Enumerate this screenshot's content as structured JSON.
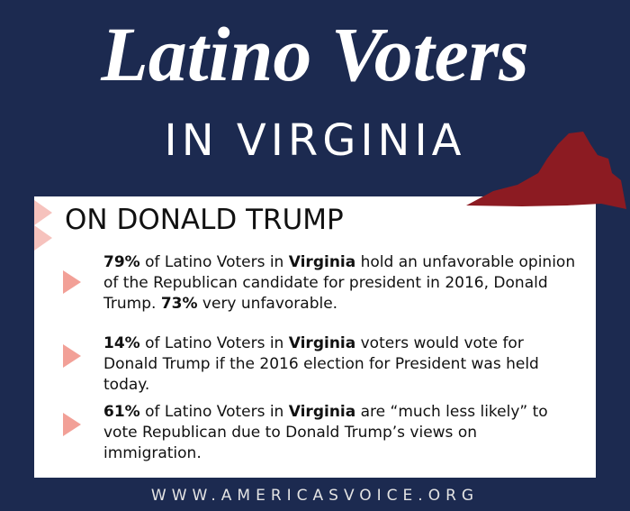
{
  "header": {
    "title": "Latino Voters",
    "subtitle": "IN VIRGINIA"
  },
  "section": {
    "heading": "ON DONALD TRUMP",
    "bullets": [
      {
        "runs": [
          {
            "text": "79%",
            "bold": true
          },
          {
            "text": " of Latino Voters in ",
            "bold": false
          },
          {
            "text": "Virginia",
            "bold": true
          },
          {
            "text": " hold an unfavorable opinion of the Republican candidate for president in 2016, Donald Trump. ",
            "bold": false
          },
          {
            "text": "73%",
            "bold": true
          },
          {
            "text": " very unfavorable.",
            "bold": false
          }
        ]
      },
      {
        "runs": [
          {
            "text": "14%",
            "bold": true
          },
          {
            "text": " of Latino Voters in ",
            "bold": false
          },
          {
            "text": "Virginia",
            "bold": true
          },
          {
            "text": " voters would vote for Donald Trump if the 2016 election for President was held today.",
            "bold": false
          }
        ]
      },
      {
        "runs": [
          {
            "text": "61%",
            "bold": true
          },
          {
            "text": " of Latino Voters in ",
            "bold": false
          },
          {
            "text": "Virginia",
            "bold": true
          },
          {
            "text": " are “much less likely” to vote Republican due to Donald Trump’s views on immigration.",
            "bold": false
          }
        ]
      }
    ]
  },
  "footer": {
    "url": "WWW.AMERICASVOICE.ORG"
  }
}
